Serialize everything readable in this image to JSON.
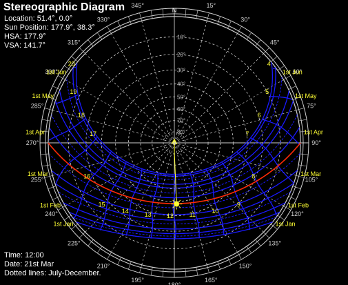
{
  "title": "Stereographic Diagram",
  "info": {
    "location": "Location: 51.4°, 0.0°",
    "sun_position": "Sun Position: 177.9°, 38.3°",
    "hsa": "HSA: 177.9°",
    "vsa": "VSA: 141.7°",
    "time": "Time: 12:00",
    "date": "Date: 21st Mar",
    "dotted_note": "Dotted lines: July-December."
  },
  "north_label": "N",
  "azimuth_labels": [
    {
      "az": 0,
      "text": "0°"
    },
    {
      "az": 15,
      "text": "15°"
    },
    {
      "az": 30,
      "text": "30°"
    },
    {
      "az": 45,
      "text": "45°"
    },
    {
      "az": 60,
      "text": "60°"
    },
    {
      "az": 75,
      "text": "75°"
    },
    {
      "az": 90,
      "text": "90°"
    },
    {
      "az": 105,
      "text": "105°"
    },
    {
      "az": 120,
      "text": "120°"
    },
    {
      "az": 135,
      "text": "135°"
    },
    {
      "az": 150,
      "text": "150°"
    },
    {
      "az": 165,
      "text": "165°"
    },
    {
      "az": 180,
      "text": "180°"
    },
    {
      "az": 195,
      "text": "195°"
    },
    {
      "az": 210,
      "text": "210°"
    },
    {
      "az": 225,
      "text": "225°"
    },
    {
      "az": 240,
      "text": "240°"
    },
    {
      "az": 255,
      "text": "255°"
    },
    {
      "az": 270,
      "text": "270°"
    },
    {
      "az": 285,
      "text": "285°"
    },
    {
      "az": 300,
      "text": "300°"
    },
    {
      "az": 315,
      "text": "315°"
    },
    {
      "az": 330,
      "text": "330°"
    },
    {
      "az": 345,
      "text": "345°"
    }
  ],
  "altitude_labels": [
    "10°",
    "20°",
    "30°",
    "40°",
    "50°",
    "60°",
    "70°",
    "80°"
  ],
  "month_labels": [
    {
      "text": "1st Jun",
      "decl": 22.0
    },
    {
      "text": "1st May",
      "decl": 15.0
    },
    {
      "text": "1st Apr",
      "decl": 4.4
    },
    {
      "text": "1st Mar",
      "decl": -7.8
    },
    {
      "text": "1st Feb",
      "decl": -17.2
    },
    {
      "text": "1st Jan",
      "decl": -23.0
    }
  ],
  "hour_labels": [
    "4",
    "5",
    "6",
    "7",
    "8",
    "9",
    "10",
    "11",
    "12",
    "13",
    "14",
    "15",
    "16",
    "17",
    "18",
    "19",
    "20"
  ],
  "current_date_decl": 0.0,
  "sun": {
    "azimuth": 177.9,
    "altitude": 38.3
  },
  "latitude": 51.4,
  "colors": {
    "grid": "#cfcfcf",
    "sunpath": "#1a1aff",
    "current_day": "#ff2a00",
    "labels": "#ffff33",
    "sun": "#ffff33"
  }
}
